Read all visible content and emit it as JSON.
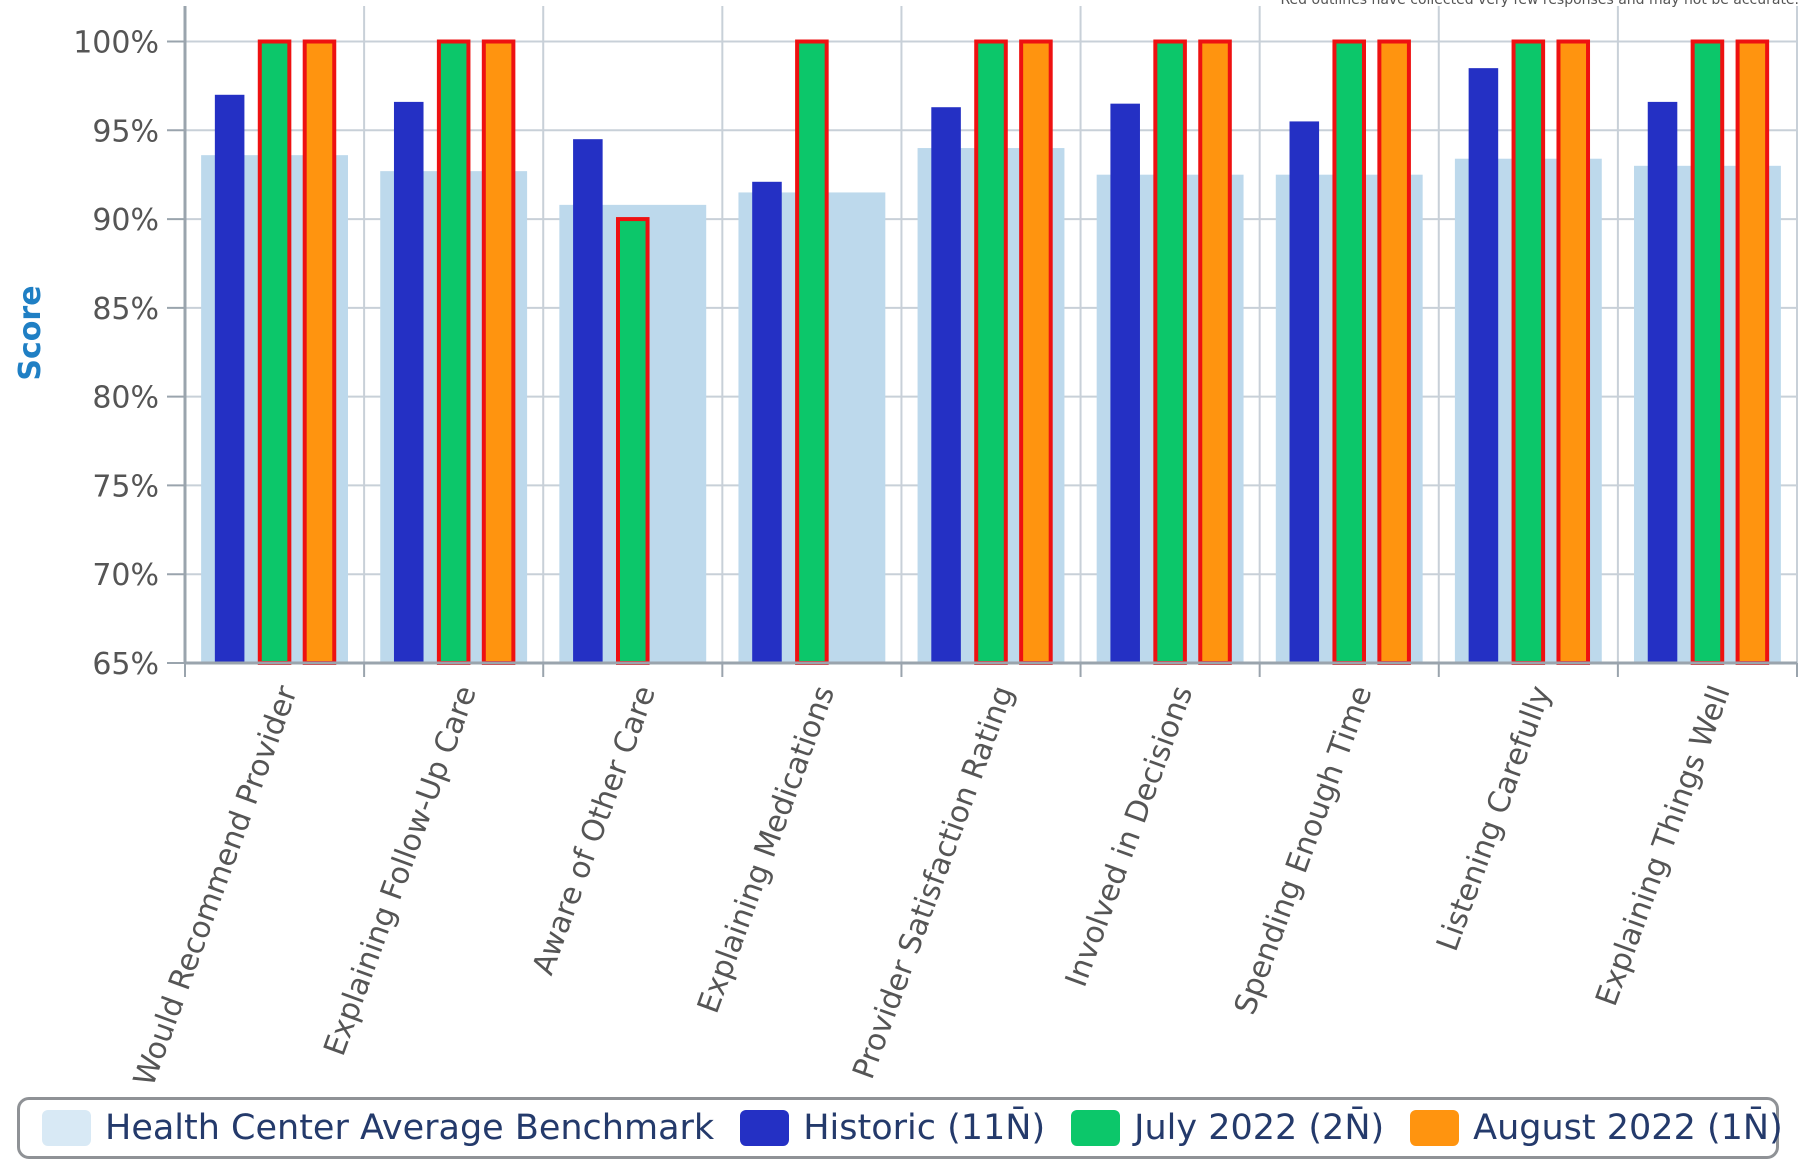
{
  "note": "Red outlines have collected very few responses and may not be accurate.",
  "chart_data": {
    "type": "bar",
    "title": "",
    "xlabel": "",
    "ylabel": "Score",
    "ylim": [
      65,
      102
    ],
    "yticks": [
      65,
      70,
      75,
      80,
      85,
      90,
      95,
      100
    ],
    "ytick_suffix": "%",
    "grid": true,
    "legend_position": "bottom",
    "categories": [
      "Would Recommend Provider",
      "Explaining Follow-Up Care",
      "Aware of Other Care",
      "Explaining Medications",
      "Provider Satisfaction Rating",
      "Involved in Decisions",
      "Spending Enough Time",
      "Listening Carefully",
      "Explaining Things Well"
    ],
    "benchmark": {
      "name": "Health Center Average Benchmark",
      "color": "#bdd9ec",
      "values": [
        93.6,
        92.7,
        90.8,
        91.5,
        94.0,
        92.5,
        92.5,
        93.4,
        93.0
      ]
    },
    "series": [
      {
        "name": "Historic (11N̄)",
        "color": "#2430c4",
        "values": [
          97.0,
          96.6,
          94.5,
          92.1,
          96.3,
          96.5,
          95.5,
          98.5,
          96.6
        ],
        "outline": [
          false,
          false,
          false,
          false,
          false,
          false,
          false,
          false,
          false
        ]
      },
      {
        "name": "July 2022 (2N̄)",
        "color": "#0cc76a",
        "values": [
          100,
          100,
          90,
          100,
          100,
          100,
          100,
          100,
          100
        ],
        "outline": [
          true,
          true,
          true,
          true,
          true,
          true,
          true,
          true,
          true
        ]
      },
      {
        "name": "August 2022 (1N̄)",
        "color": "#ff940f",
        "values": [
          100,
          100,
          null,
          null,
          100,
          100,
          100,
          100,
          100
        ],
        "outline": [
          true,
          true,
          false,
          false,
          true,
          true,
          true,
          true,
          true
        ]
      }
    ],
    "outline_color": "#ee1111"
  }
}
